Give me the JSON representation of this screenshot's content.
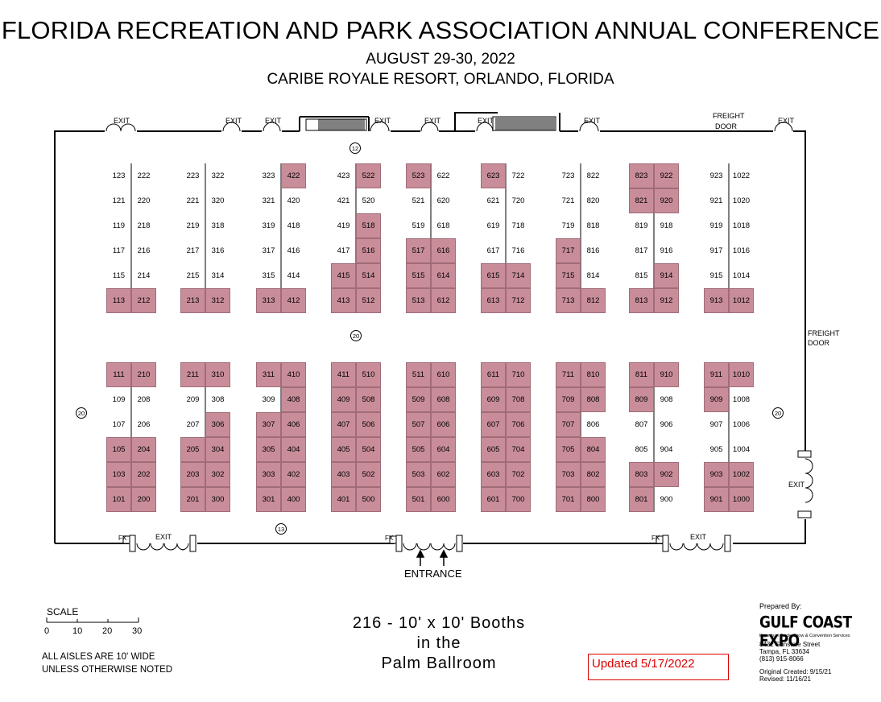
{
  "header": {
    "title": "FLORIDA RECREATION AND PARK ASSOCIATION ANNUAL CONFERENCE",
    "date": "AUGUST 29-30, 2022",
    "venue": "CARIBE ROYALE RESORT, ORLANDO, FLORIDA"
  },
  "floor_labels": {
    "exit": "EXIT",
    "freight_door_top": "FREIGHT DOOR",
    "freight_door_right": "FREIGHT DOOR",
    "fx": "FX",
    "entrance": "ENTRANCE"
  },
  "markers": [
    "12",
    "20",
    "20",
    "20",
    "13"
  ],
  "colors": {
    "sold": "#c98d9a",
    "wall": "#000000",
    "updated": "#dd0000"
  },
  "booth_rows_top": [
    [
      "123",
      "222",
      "223",
      "322",
      "323",
      "422",
      "423",
      "522",
      "523",
      "622",
      "623",
      "722",
      "723",
      "822",
      "823",
      "922",
      "923",
      "1022"
    ],
    [
      "121",
      "220",
      "221",
      "320",
      "321",
      "420",
      "421",
      "520",
      "521",
      "620",
      "621",
      "720",
      "721",
      "820",
      "821",
      "920",
      "921",
      "1020"
    ],
    [
      "119",
      "218",
      "219",
      "318",
      "319",
      "418",
      "419",
      "518",
      "519",
      "618",
      "619",
      "718",
      "719",
      "818",
      "819",
      "918",
      "919",
      "1018"
    ],
    [
      "117",
      "216",
      "217",
      "316",
      "317",
      "416",
      "417",
      "516",
      "517",
      "616",
      "617",
      "716",
      "717",
      "816",
      "817",
      "916",
      "917",
      "1016"
    ],
    [
      "115",
      "214",
      "215",
      "314",
      "315",
      "414",
      "415",
      "514",
      "515",
      "614",
      "615",
      "714",
      "715",
      "814",
      "815",
      "914",
      "915",
      "1014"
    ],
    [
      "113",
      "212",
      "213",
      "312",
      "313",
      "412",
      "413",
      "512",
      "513",
      "612",
      "613",
      "712",
      "713",
      "812",
      "813",
      "912",
      "913",
      "1012"
    ]
  ],
  "booth_rows_bottom": [
    [
      "111",
      "210",
      "211",
      "310",
      "311",
      "410",
      "411",
      "510",
      "511",
      "610",
      "611",
      "710",
      "711",
      "810",
      "811",
      "910",
      "911",
      "1010"
    ],
    [
      "109",
      "208",
      "209",
      "308",
      "309",
      "408",
      "409",
      "508",
      "509",
      "608",
      "609",
      "708",
      "709",
      "808",
      "809",
      "908",
      "909",
      "1008"
    ],
    [
      "107",
      "206",
      "207",
      "306",
      "307",
      "406",
      "407",
      "506",
      "507",
      "606",
      "607",
      "706",
      "707",
      "806",
      "807",
      "906",
      "907",
      "1006"
    ],
    [
      "105",
      "204",
      "205",
      "304",
      "305",
      "404",
      "405",
      "504",
      "505",
      "604",
      "605",
      "704",
      "705",
      "804",
      "805",
      "904",
      "905",
      "1004"
    ],
    [
      "103",
      "202",
      "203",
      "302",
      "303",
      "402",
      "403",
      "502",
      "503",
      "602",
      "603",
      "702",
      "703",
      "802",
      "803",
      "902",
      "903",
      "1002"
    ],
    [
      "101",
      "200",
      "201",
      "300",
      "301",
      "400",
      "401",
      "500",
      "501",
      "600",
      "601",
      "700",
      "701",
      "800",
      "801",
      "900",
      "901",
      "1000"
    ]
  ],
  "sold_booths": [
    "422",
    "522",
    "523",
    "623",
    "823",
    "922",
    "821",
    "920",
    "518",
    "516",
    "517",
    "616",
    "717",
    "415",
    "514",
    "515",
    "614",
    "615",
    "714",
    "715",
    "914",
    "113",
    "212",
    "213",
    "312",
    "313",
    "412",
    "413",
    "512",
    "513",
    "612",
    "613",
    "712",
    "713",
    "812",
    "813",
    "912",
    "913",
    "1012",
    "111",
    "210",
    "211",
    "310",
    "311",
    "410",
    "411",
    "510",
    "511",
    "610",
    "611",
    "710",
    "711",
    "810",
    "811",
    "910",
    "911",
    "1010",
    "408",
    "409",
    "508",
    "509",
    "608",
    "609",
    "708",
    "709",
    "808",
    "809",
    "909",
    "306",
    "307",
    "406",
    "407",
    "506",
    "507",
    "606",
    "607",
    "706",
    "707",
    "105",
    "204",
    "205",
    "304",
    "305",
    "404",
    "405",
    "504",
    "505",
    "604",
    "605",
    "704",
    "705",
    "804",
    "103",
    "202",
    "203",
    "302",
    "303",
    "402",
    "403",
    "502",
    "503",
    "602",
    "603",
    "702",
    "703",
    "802",
    "803",
    "902",
    "903",
    "1002",
    "101",
    "200",
    "201",
    "300",
    "301",
    "400",
    "401",
    "500",
    "501",
    "600",
    "601",
    "700",
    "701",
    "800",
    "801",
    "901",
    "1000"
  ],
  "footer": {
    "scale_title": "SCALE",
    "scale_marks": [
      "0",
      "10",
      "20",
      "30"
    ],
    "aisles_line1": "ALL AISLES ARE 10' WIDE",
    "aisles_line2": "UNLESS OTHERWISE NOTED",
    "booths_line1": "216 - 10' x 10' Booths",
    "booths_line2": "in the",
    "booths_line3": "Palm Ballroom",
    "updated": "Updated 5/17/2022",
    "prepared_by": "Prepared By:",
    "company": "GULF COAST EXPO",
    "tagline": "Experts in Trade Show & Convention Services",
    "address1": "8432 Sunstate Street",
    "address2": "Tampa, FL 33634",
    "phone": "(813) 915-8066",
    "created": "Original Created: 9/15/21",
    "revised": "Revised: 11/16/21"
  }
}
